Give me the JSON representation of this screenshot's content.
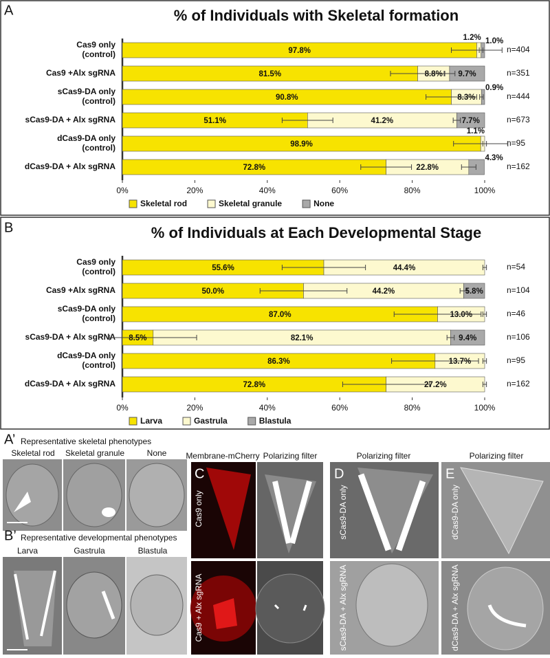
{
  "chart_data": [
    {
      "type": "stacked-barh",
      "panel": "A",
      "title": "% of Individuals with Skeletal formation",
      "categories": [
        "Cas9 only\n(control)",
        "Cas9 +Alx sgRNA",
        "sCas9-DA only\n(control)",
        "sCas9-DA + Alx sgRNA",
        "dCas9-DA only\n(control)",
        "dCas9-DA + Alx sgRNA"
      ],
      "series": [
        {
          "name": "Skeletal rod",
          "color": "#f7e300",
          "values": [
            97.8,
            81.5,
            90.8,
            51.1,
            98.9,
            72.8
          ],
          "value_labels": [
            "97.8%",
            "81.5%",
            "90.8%",
            "51.1%",
            "98.9%",
            "72.8%"
          ],
          "errors": [
            7,
            7.5,
            7,
            7,
            7.5,
            7
          ]
        },
        {
          "name": "Skeletal granule",
          "color": "#fdf9cf",
          "values": [
            1.2,
            8.8,
            8.3,
            41.2,
            1.1,
            22.8
          ],
          "value_labels": [
            "1.2%",
            "8.8%",
            "8.3%",
            "41.2%",
            "1.1%",
            "22.8%"
          ],
          "errors": [
            0.5,
            1.5,
            0.5,
            1,
            0.5,
            2
          ]
        },
        {
          "name": "None",
          "color": "#a9a9a9",
          "values": [
            1.0,
            9.7,
            0.9,
            7.7,
            0,
            4.3
          ],
          "value_labels": [
            "1.0%",
            "9.7%",
            "0.9%",
            "7.7%",
            null,
            "4.3%"
          ]
        }
      ],
      "n_labels": [
        "n=404",
        "n=351",
        "n=444",
        "n=673",
        "n=95",
        "n=162"
      ],
      "xlim": [
        0,
        100
      ],
      "xticks": [
        {
          "value": 0,
          "label": "0%"
        },
        {
          "value": 20,
          "label": "20%"
        },
        {
          "value": 40,
          "label": "40%"
        },
        {
          "value": 60,
          "label": "60%"
        },
        {
          "value": 80,
          "label": "80%"
        },
        {
          "value": 100,
          "label": "100%"
        }
      ]
    },
    {
      "type": "stacked-barh",
      "panel": "B",
      "title": "% of Individuals at Each Developmental Stage",
      "categories": [
        "Cas9 only\n(control)",
        "Cas9 +Alx sgRNA",
        "sCas9-DA only\n(control)",
        "sCas9-DA + Alx sgRNA",
        "dCas9-DA only\n(control)",
        "dCas9-DA + Alx sgRNA"
      ],
      "series": [
        {
          "name": "Larva",
          "color": "#f7e300",
          "values": [
            55.6,
            50.0,
            87.0,
            8.5,
            86.3,
            72.8
          ],
          "value_labels": [
            "55.6%",
            "50.0%",
            "87.0%",
            "8.5%",
            "86.3%",
            "72.8%"
          ],
          "errors": [
            11.5,
            12,
            12,
            12,
            12,
            12
          ]
        },
        {
          "name": "Gastrula",
          "color": "#fdf9cf",
          "values": [
            44.4,
            44.2,
            13.0,
            82.1,
            13.7,
            27.2
          ],
          "value_labels": [
            "44.4%",
            "44.2%",
            "13.0%",
            "82.1%",
            "13.7%",
            "27.2%"
          ],
          "errors": [
            0.5,
            1,
            0.5,
            1,
            0.5,
            0.5
          ]
        },
        {
          "name": "Blastula",
          "color": "#a9a9a9",
          "values": [
            0,
            5.8,
            0,
            9.4,
            0,
            0
          ],
          "value_labels": [
            null,
            "5.8%",
            null,
            "9.4%",
            null,
            null
          ]
        }
      ],
      "n_labels": [
        "n=54",
        "n=104",
        "n=46",
        "n=106",
        "n=95",
        "n=162"
      ],
      "xlim": [
        0,
        100
      ],
      "xticks": [
        {
          "value": 0,
          "label": "0%"
        },
        {
          "value": 20,
          "label": "20%"
        },
        {
          "value": 40,
          "label": "40%"
        },
        {
          "value": 60,
          "label": "60%"
        },
        {
          "value": 80,
          "label": "80%"
        },
        {
          "value": 100,
          "label": "100%"
        }
      ]
    }
  ],
  "panels": {
    "a_prime": {
      "label": "A’",
      "title": "Representative skeletal phenotypes",
      "items": [
        "Skeletal rod",
        "Skeletal granule",
        "None"
      ]
    },
    "b_prime": {
      "label": "B’",
      "title": "Representative developmental phenotypes",
      "items": [
        "Larva",
        "Gastrula",
        "Blastula"
      ]
    },
    "c": {
      "label": "C",
      "headers": [
        "Membrane-mCherry",
        "Polarizing filter"
      ],
      "rows": [
        "Cas9 only",
        "Cas9 + Alx sgRNA"
      ]
    },
    "d": {
      "label": "D",
      "header": "Polarizing filter",
      "rows": [
        "sCas9-DA only",
        "sCas9-DA + Alx sgRNA"
      ]
    },
    "e": {
      "label": "E",
      "header": "Polarizing filter",
      "rows": [
        "dCas9-DA only",
        "dCas9-DA + Alx sgRNA"
      ]
    }
  }
}
